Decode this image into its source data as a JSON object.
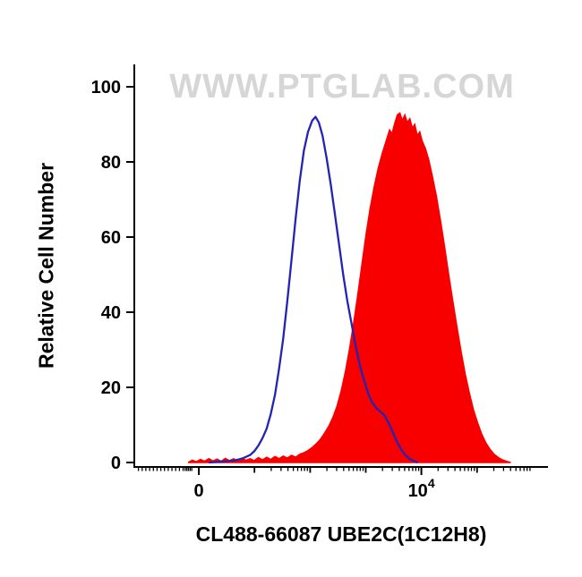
{
  "chart_data": {
    "type": "area",
    "subtype": "flow-cytometry-overlay-histogram",
    "watermark": "WWW.PTGLAB.COM",
    "x_label": "CL488-66087 UBE2C(1C12H8)",
    "y_label": "Relative Cell Number",
    "colors": {
      "filled_series": "#f80000",
      "open_series": "#2424b2",
      "axis": "#000000",
      "watermark": "#d6d6d6"
    },
    "y_axis": {
      "range": [
        0,
        100
      ],
      "major": [
        {
          "value": 0,
          "label": "0"
        },
        {
          "value": 20,
          "label": "20"
        },
        {
          "value": 40,
          "label": "40"
        },
        {
          "value": 60,
          "label": "60"
        },
        {
          "value": 80,
          "label": "80"
        },
        {
          "value": 100,
          "label": "100"
        }
      ],
      "minor": []
    },
    "x_axis": {
      "scale": "biexponential",
      "major": [
        {
          "pos": 15.6,
          "label": "0"
        },
        {
          "pos": 69.4,
          "label": "10",
          "sup": "4"
        }
      ],
      "medium": [
        29.05,
        42.5,
        55.95,
        82.85
      ],
      "minor": [
        1.0,
        1.9,
        2.8,
        3.7,
        4.6,
        5.5,
        6.4,
        7.3,
        8.2,
        9.1,
        10.0,
        10.9,
        11.8,
        12.3,
        12.7,
        13.1,
        13.5,
        13.9,
        33.1,
        35.47,
        37.15,
        38.45,
        39.5,
        40.4,
        41.15,
        41.85,
        46.55,
        48.92,
        50.6,
        51.9,
        52.95,
        53.85,
        54.6,
        55.3,
        60.0,
        62.37,
        64.05,
        65.35,
        66.4,
        67.3,
        68.05,
        68.75,
        73.45,
        75.82,
        77.5,
        78.8,
        79.85,
        80.75,
        81.5,
        82.2,
        86.9,
        89.27,
        90.95,
        92.25,
        93.3,
        94.2,
        94.95,
        95.65
      ]
    },
    "series": [
      {
        "name": "red-filled-sample",
        "style": "filled",
        "color": "#f80000",
        "points": [
          [
            13,
            0
          ],
          [
            14,
            0.6
          ],
          [
            15,
            0.2
          ],
          [
            16,
            0.8
          ],
          [
            17,
            0.3
          ],
          [
            18,
            1
          ],
          [
            19,
            0.4
          ],
          [
            20,
            0.9
          ],
          [
            21,
            0.3
          ],
          [
            22,
            1.1
          ],
          [
            23,
            0.5
          ],
          [
            24,
            1
          ],
          [
            25,
            0.4
          ],
          [
            26,
            1.2
          ],
          [
            27,
            0.6
          ],
          [
            28,
            1
          ],
          [
            29,
            0.5
          ],
          [
            30,
            1.3
          ],
          [
            31,
            0.7
          ],
          [
            32,
            1.4
          ],
          [
            33,
            0.8
          ],
          [
            34,
            1.6
          ],
          [
            35,
            1
          ],
          [
            36,
            1.7
          ],
          [
            37,
            1.2
          ],
          [
            38,
            1.9
          ],
          [
            39,
            1.4
          ],
          [
            40,
            2.2
          ],
          [
            41,
            2.6
          ],
          [
            42,
            3.2
          ],
          [
            43,
            4
          ],
          [
            44,
            5
          ],
          [
            45,
            6.2
          ],
          [
            46,
            7.8
          ],
          [
            47,
            9.6
          ],
          [
            48,
            12
          ],
          [
            49,
            15
          ],
          [
            50,
            19
          ],
          [
            51,
            24
          ],
          [
            52,
            30
          ],
          [
            53,
            37
          ],
          [
            54,
            44.5
          ],
          [
            55,
            52.5
          ],
          [
            56,
            60.5
          ],
          [
            57,
            67.5
          ],
          [
            58,
            73.5
          ],
          [
            59,
            78.5
          ],
          [
            60,
            82.5
          ],
          [
            61,
            86
          ],
          [
            61.7,
            88.5
          ],
          [
            62.3,
            87.5
          ],
          [
            63,
            90.5
          ],
          [
            63.6,
            92.5
          ],
          [
            64.2,
            93
          ],
          [
            64.8,
            91
          ],
          [
            65.4,
            92.5
          ],
          [
            66,
            90.5
          ],
          [
            66.6,
            91.5
          ],
          [
            67.2,
            89
          ],
          [
            67.8,
            90
          ],
          [
            68.4,
            87
          ],
          [
            69,
            88
          ],
          [
            69.6,
            85.5
          ],
          [
            70.4,
            83.5
          ],
          [
            71.2,
            80.5
          ],
          [
            72,
            76.5
          ],
          [
            73,
            71
          ],
          [
            74,
            64.5
          ],
          [
            75,
            57.5
          ],
          [
            76,
            50
          ],
          [
            77,
            43
          ],
          [
            78,
            36
          ],
          [
            79,
            29.5
          ],
          [
            80,
            23.5
          ],
          [
            81,
            18.5
          ],
          [
            82,
            14
          ],
          [
            83,
            10.5
          ],
          [
            84,
            7.5
          ],
          [
            85,
            5.2
          ],
          [
            86,
            3.5
          ],
          [
            87,
            2.2
          ],
          [
            88,
            1.3
          ],
          [
            89,
            0.7
          ],
          [
            90,
            0.3
          ],
          [
            91,
            0
          ]
        ]
      },
      {
        "name": "blue-open-control",
        "style": "open",
        "color": "#2424b2",
        "points": [
          [
            18,
            0
          ],
          [
            22,
            0.3
          ],
          [
            24,
            0.5
          ],
          [
            26,
            1
          ],
          [
            28,
            2
          ],
          [
            29,
            3
          ],
          [
            30,
            4.5
          ],
          [
            31,
            6.5
          ],
          [
            32,
            9
          ],
          [
            33,
            13
          ],
          [
            34,
            18
          ],
          [
            35,
            25
          ],
          [
            36,
            33
          ],
          [
            37,
            43
          ],
          [
            38,
            54
          ],
          [
            39,
            65
          ],
          [
            40,
            75
          ],
          [
            41,
            83
          ],
          [
            42,
            88
          ],
          [
            43,
            91
          ],
          [
            43.8,
            92
          ],
          [
            44.6,
            90.5
          ],
          [
            45.5,
            87
          ],
          [
            46.5,
            81
          ],
          [
            47.5,
            74
          ],
          [
            48.5,
            66
          ],
          [
            49.5,
            58
          ],
          [
            50.5,
            50
          ],
          [
            51.5,
            43
          ],
          [
            52.5,
            37
          ],
          [
            53.5,
            31
          ],
          [
            54.5,
            26
          ],
          [
            55.5,
            22
          ],
          [
            56.5,
            18.5
          ],
          [
            57.5,
            16
          ],
          [
            58.5,
            14.5
          ],
          [
            59.5,
            13.5
          ],
          [
            60.5,
            12.5
          ],
          [
            61.5,
            10.5
          ],
          [
            62.5,
            8
          ],
          [
            63.5,
            5.5
          ],
          [
            64.5,
            3.5
          ],
          [
            65.5,
            2
          ],
          [
            66.5,
            1
          ],
          [
            67.5,
            0.4
          ],
          [
            68.5,
            0
          ]
        ]
      }
    ]
  }
}
